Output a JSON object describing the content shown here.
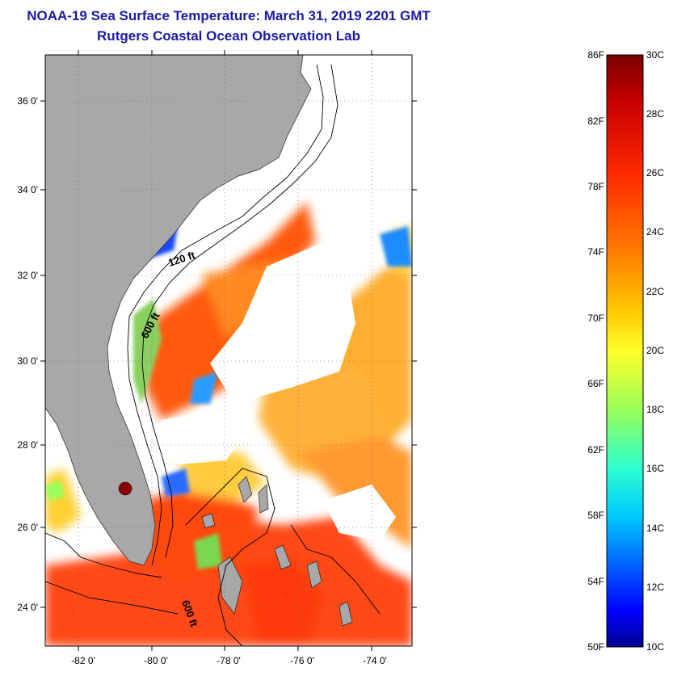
{
  "title": {
    "line1": "NOAA-19 Sea Surface Temperature:  March 31, 2019 2201 GMT",
    "line2": "Rutgers Coastal Ocean Observation Lab"
  },
  "map": {
    "lon_labels": [
      "-82 0'",
      "-80 0'",
      "-78 0'",
      "-76 0'",
      "-74 0'"
    ],
    "lat_labels": [
      "36 0'",
      "34 0'",
      "32 0'",
      "30 0'",
      "28 0'",
      "26 0'",
      "24 0'"
    ],
    "contour_labels": [
      "120 ft",
      "600 ft",
      "600 ft"
    ],
    "land_color": "#a8a8a8",
    "cloud_color": "#ffffff"
  },
  "colorbar": {
    "fahrenheit_labels": [
      "86F",
      "82F",
      "78F",
      "74F",
      "70F",
      "66F",
      "62F",
      "58F",
      "54F",
      "50F"
    ],
    "celsius_labels": [
      "30C",
      "28C",
      "26C",
      "24C",
      "22C",
      "20C",
      "18C",
      "16C",
      "14C",
      "12C",
      "10C"
    ],
    "gradient_colors": [
      "#7a0000",
      "#c80000",
      "#ff2a00",
      "#ff7a00",
      "#ffc800",
      "#ffff2a",
      "#9aff5a",
      "#2affd2",
      "#00c8ff",
      "#0064ff",
      "#0000ff",
      "#00008f"
    ]
  }
}
